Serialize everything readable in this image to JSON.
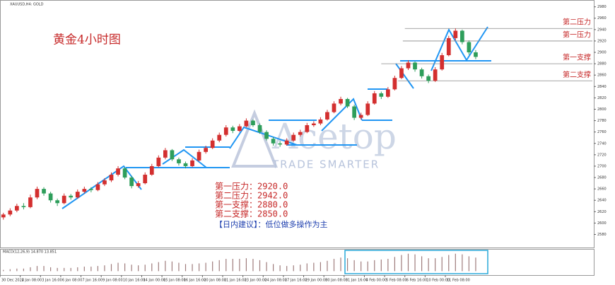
{
  "chart_data": {
    "type": "candlestick",
    "symbol": "XAUUSD,H4: GOLD",
    "title": "黄金4小时图",
    "watermark": "Acetop",
    "watermark_sub": "TRADE SMARTER",
    "up_color": "#d32f2f",
    "down_color": "#2e9e5b",
    "xlim": [
      0,
      88
    ],
    "ylim": [
      2557,
      2992
    ],
    "yticks": [
      2580,
      2600,
      2620,
      2640,
      2660,
      2680,
      2700,
      2720,
      2740,
      2760,
      2780,
      2800,
      2820,
      2840,
      2860,
      2880,
      2900,
      2920,
      2940,
      2960,
      2980
    ],
    "xticks": [
      {
        "value": 0,
        "label": "30 Dec 2024"
      },
      {
        "value": 3,
        "label": "2 Jan 08:00"
      },
      {
        "value": 6,
        "label": "3 Jan 16:00"
      },
      {
        "value": 9,
        "label": "6 Jan 08:00"
      },
      {
        "value": 12,
        "label": "7 Jan 16:00"
      },
      {
        "value": 15,
        "label": "9 Jan 08:00"
      },
      {
        "value": 18,
        "label": "10 Jan 16:00"
      },
      {
        "value": 21,
        "label": "14 Jan 00:00"
      },
      {
        "value": 24,
        "label": "15 Jan 08:00"
      },
      {
        "value": 27,
        "label": "16 Jan 16:00"
      },
      {
        "value": 30,
        "label": "20 Jan 08:00"
      },
      {
        "value": 33,
        "label": "21 Jan 16:00"
      },
      {
        "value": 36,
        "label": "23 Jan 00:00"
      },
      {
        "value": 39,
        "label": "24 Jan 08:00"
      },
      {
        "value": 42,
        "label": "27 Jan 16:00"
      },
      {
        "value": 45,
        "label": "29 Jan 00:00"
      },
      {
        "value": 48,
        "label": "30 Jan 08:00"
      },
      {
        "value": 51,
        "label": "31 Jan 16:00"
      },
      {
        "value": 54,
        "label": "4 Feb 00:00"
      },
      {
        "value": 57,
        "label": "5 Feb 08:00"
      },
      {
        "value": 60,
        "label": "6 Feb 16:00"
      },
      {
        "value": 63,
        "label": "10 Feb 00:00"
      },
      {
        "value": 66,
        "label": "11 Feb 08:00"
      }
    ],
    "candles": [
      [
        2610,
        2618,
        2606,
        2615
      ],
      [
        2615,
        2626,
        2612,
        2622
      ],
      [
        2622,
        2634,
        2619,
        2630
      ],
      [
        2630,
        2635,
        2624,
        2628
      ],
      [
        2628,
        2650,
        2626,
        2645
      ],
      [
        2645,
        2664,
        2642,
        2660
      ],
      [
        2660,
        2663,
        2648,
        2652
      ],
      [
        2652,
        2655,
        2636,
        2640
      ],
      [
        2640,
        2643,
        2630,
        2635
      ],
      [
        2635,
        2652,
        2633,
        2648
      ],
      [
        2648,
        2651,
        2641,
        2645
      ],
      [
        2645,
        2659,
        2643,
        2655
      ],
      [
        2655,
        2664,
        2652,
        2660
      ],
      [
        2660,
        2663,
        2654,
        2658
      ],
      [
        2658,
        2672,
        2656,
        2668
      ],
      [
        2668,
        2679,
        2665,
        2675
      ],
      [
        2675,
        2689,
        2672,
        2685
      ],
      [
        2685,
        2700,
        2682,
        2696
      ],
      [
        2696,
        2698,
        2677,
        2680
      ],
      [
        2680,
        2683,
        2661,
        2665
      ],
      [
        2665,
        2674,
        2662,
        2670
      ],
      [
        2670,
        2689,
        2668,
        2685
      ],
      [
        2685,
        2704,
        2683,
        2700
      ],
      [
        2700,
        2719,
        2698,
        2715
      ],
      [
        2715,
        2732,
        2712,
        2728
      ],
      [
        2728,
        2730,
        2709,
        2712
      ],
      [
        2712,
        2715,
        2701,
        2705
      ],
      [
        2705,
        2708,
        2696,
        2700
      ],
      [
        2700,
        2714,
        2698,
        2710
      ],
      [
        2710,
        2729,
        2708,
        2725
      ],
      [
        2725,
        2736,
        2722,
        2732
      ],
      [
        2732,
        2749,
        2730,
        2745
      ],
      [
        2745,
        2759,
        2742,
        2755
      ],
      [
        2755,
        2772,
        2752,
        2768
      ],
      [
        2768,
        2771,
        2758,
        2762
      ],
      [
        2762,
        2774,
        2760,
        2770
      ],
      [
        2770,
        2784,
        2768,
        2780
      ],
      [
        2780,
        2782,
        2769,
        2772
      ],
      [
        2772,
        2775,
        2757,
        2760
      ],
      [
        2760,
        2763,
        2745,
        2748
      ],
      [
        2748,
        2751,
        2736,
        2740
      ],
      [
        2740,
        2744,
        2734,
        2738
      ],
      [
        2738,
        2749,
        2736,
        2745
      ],
      [
        2745,
        2759,
        2743,
        2755
      ],
      [
        2755,
        2764,
        2752,
        2760
      ],
      [
        2760,
        2776,
        2758,
        2772
      ],
      [
        2772,
        2779,
        2769,
        2775
      ],
      [
        2775,
        2786,
        2772,
        2782
      ],
      [
        2782,
        2799,
        2780,
        2795
      ],
      [
        2795,
        2814,
        2793,
        2810
      ],
      [
        2810,
        2822,
        2807,
        2818
      ],
      [
        2818,
        2820,
        2802,
        2805
      ],
      [
        2805,
        2808,
        2781,
        2785
      ],
      [
        2785,
        2794,
        2782,
        2790
      ],
      [
        2790,
        2814,
        2788,
        2810
      ],
      [
        2810,
        2832,
        2808,
        2828
      ],
      [
        2828,
        2831,
        2818,
        2822
      ],
      [
        2822,
        2839,
        2820,
        2835
      ],
      [
        2835,
        2859,
        2833,
        2855
      ],
      [
        2855,
        2876,
        2853,
        2872
      ],
      [
        2872,
        2886,
        2869,
        2882
      ],
      [
        2882,
        2884,
        2866,
        2870
      ],
      [
        2870,
        2873,
        2854,
        2858
      ],
      [
        2858,
        2861,
        2846,
        2850
      ],
      [
        2850,
        2874,
        2848,
        2870
      ],
      [
        2870,
        2899,
        2868,
        2895
      ],
      [
        2895,
        2929,
        2893,
        2925
      ],
      [
        2925,
        2942,
        2921,
        2938
      ],
      [
        2938,
        2940,
        2914,
        2918
      ],
      [
        2918,
        2921,
        2896,
        2900
      ],
      [
        2900,
        2904,
        2888,
        2892
      ]
    ],
    "levels": [
      {
        "name": "第二压力",
        "value": 2942,
        "from": 60
      },
      {
        "name": "第一压力",
        "value": 2920,
        "from": 59.7
      },
      {
        "name": "第一支撑",
        "value": 2880,
        "from": 56.5
      },
      {
        "name": "第二支撑",
        "value": 2850,
        "from": 59
      }
    ],
    "notes": [
      "第一压力：2920.0",
      "第二压力：2942.0",
      "第一支撑：2880.0",
      "第二支撑：2850.0"
    ],
    "advice": "【日内建议】：低位做多操作为主",
    "macd": {
      "label": "MACD(12,26,9) 14.870 13.851",
      "ylim": [
        -5,
        30
      ],
      "color": "#9e7b7b",
      "values": [
        2,
        3,
        4,
        4,
        6,
        8,
        8,
        6,
        5,
        5,
        5,
        6,
        7,
        7,
        8,
        9,
        11,
        13,
        12,
        10,
        9,
        10,
        12,
        14,
        16,
        15,
        13,
        11,
        11,
        12,
        13,
        15,
        17,
        19,
        19,
        19,
        20,
        19,
        17,
        14,
        11,
        9,
        8,
        9,
        10,
        12,
        13,
        14,
        16,
        19,
        21,
        20,
        17,
        15,
        15,
        17,
        18,
        19,
        22,
        25,
        27,
        26,
        23,
        20,
        20,
        22,
        25,
        27,
        26,
        23,
        21
      ]
    }
  }
}
